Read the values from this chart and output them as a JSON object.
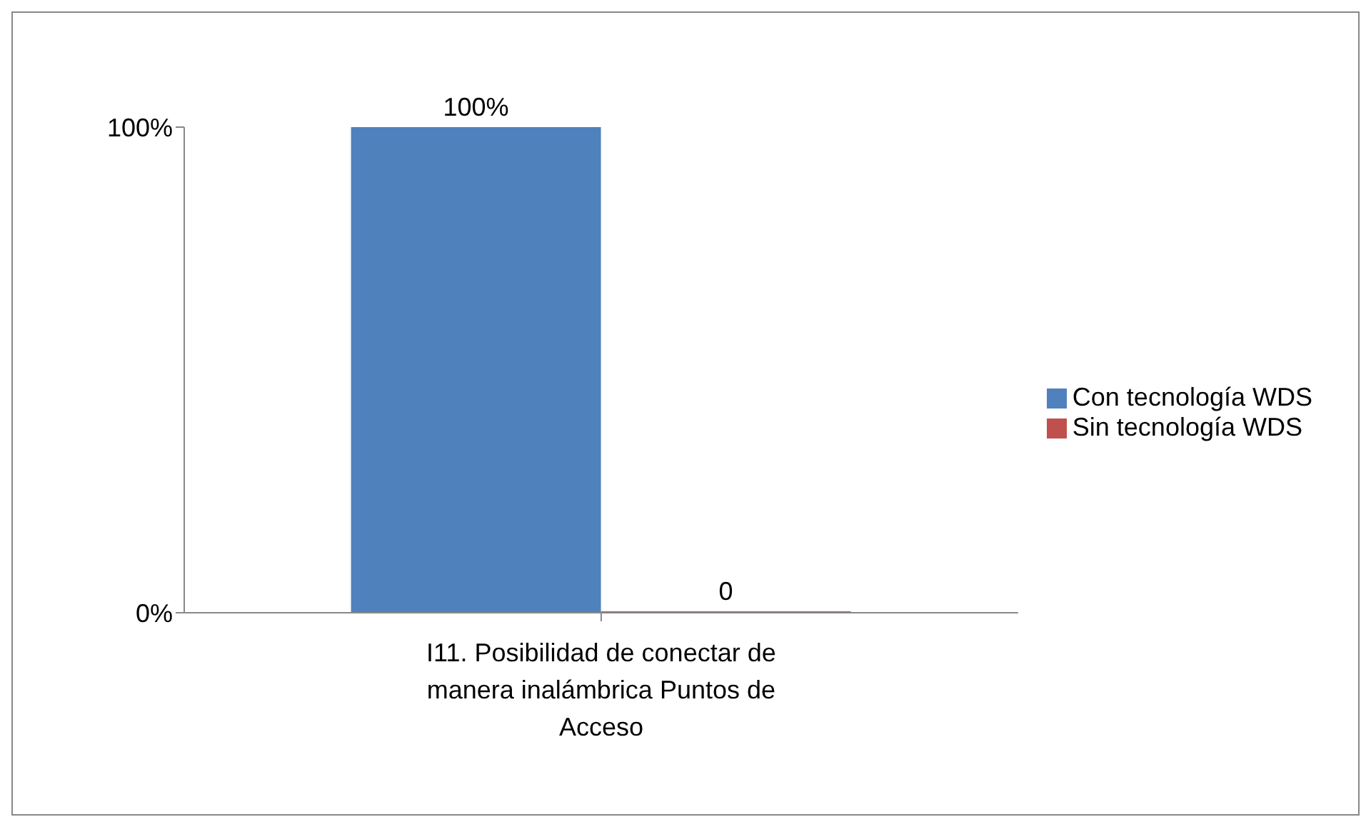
{
  "chart_data": {
    "type": "bar",
    "categories": [
      "I11. Posibilidad de conectar de manera inalámbrica Puntos de Acceso"
    ],
    "series": [
      {
        "name": "Con tecnología WDS",
        "color": "#4f81bd",
        "values": [
          100
        ],
        "value_labels": [
          "100%"
        ]
      },
      {
        "name": "Sin tecnología WDS",
        "color": "#c0504d",
        "values": [
          0
        ],
        "value_labels": [
          "0"
        ]
      }
    ],
    "ylim": [
      0,
      100
    ],
    "yticks": [
      {
        "value": 0,
        "label": "0%"
      },
      {
        "value": 100,
        "label": "100%"
      }
    ],
    "legend": "right"
  }
}
